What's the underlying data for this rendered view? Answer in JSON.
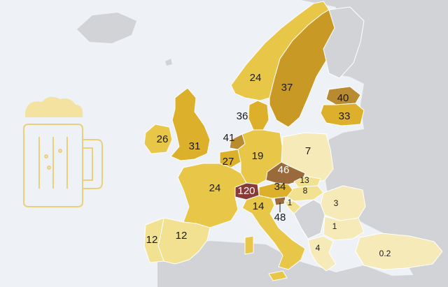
{
  "map": {
    "colors": {
      "sea": "#eef1f6",
      "land": "#d2d3d6",
      "border": "#ffffff",
      "lowest": "#f5eab8",
      "low": "#f2e190",
      "mid": "#e8c648",
      "high": "#dcb02a",
      "higher": "#c99926",
      "highest": "#b98b30",
      "brown": "#9a6a3a",
      "maroon": "#8a3a36",
      "mug_stroke": "#ead07a",
      "foam": "#f3e2a0"
    },
    "icon": "beer-mug-icon",
    "countries": [
      {
        "id": "norway",
        "value": "24"
      },
      {
        "id": "sweden",
        "value": "37"
      },
      {
        "id": "estonia",
        "value": "40"
      },
      {
        "id": "latvia",
        "value": "33"
      },
      {
        "id": "denmark",
        "value": "36"
      },
      {
        "id": "ireland",
        "value": "26"
      },
      {
        "id": "united-kingdom",
        "value": "31"
      },
      {
        "id": "netherlands",
        "value": "41"
      },
      {
        "id": "belgium",
        "value": "27"
      },
      {
        "id": "germany",
        "value": "19"
      },
      {
        "id": "poland",
        "value": "7"
      },
      {
        "id": "czechia",
        "value": "46"
      },
      {
        "id": "slovakia",
        "value": "13"
      },
      {
        "id": "hungary",
        "value": "8"
      },
      {
        "id": "austria",
        "value": "34"
      },
      {
        "id": "switzerland",
        "value": "120"
      },
      {
        "id": "france",
        "value": "24"
      },
      {
        "id": "slovenia",
        "value": "48"
      },
      {
        "id": "croatia",
        "value": "1"
      },
      {
        "id": "italy",
        "value": "14"
      },
      {
        "id": "romania",
        "value": "3"
      },
      {
        "id": "bulgaria",
        "value": "1"
      },
      {
        "id": "greece",
        "value": "4"
      },
      {
        "id": "turkey",
        "value": "0.2"
      },
      {
        "id": "spain",
        "value": "12"
      },
      {
        "id": "portugal",
        "value": "12"
      }
    ]
  }
}
